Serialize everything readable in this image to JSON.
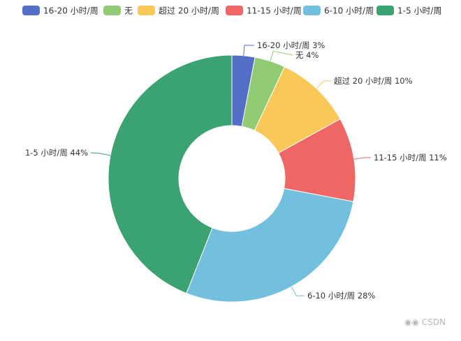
{
  "chart_data": {
    "type": "pie",
    "variant": "donut",
    "legend": {
      "position": "top"
    },
    "slices": [
      {
        "name": "16-20 小时/周",
        "value": 3,
        "label": "16-20 小时/周 3%",
        "color": "#5470c6"
      },
      {
        "name": "无",
        "value": 4,
        "label": "无 4%",
        "color": "#91cc75"
      },
      {
        "name": "超过 20 小时/周",
        "value": 10,
        "label": "超过 20 小时/周 10%",
        "color": "#fac858"
      },
      {
        "name": "11-15 小时/周",
        "value": 11,
        "label": "11-15 小时/周 11%",
        "color": "#ee6666"
      },
      {
        "name": "6-10 小时/周",
        "value": 28,
        "label": "6-10 小时/周 28%",
        "color": "#73c0de"
      },
      {
        "name": "1-5 小时/周",
        "value": 44,
        "label": "1-5 小时/周 44%",
        "color": "#3ba272"
      }
    ]
  },
  "watermark": {
    "text": "CSDN"
  }
}
